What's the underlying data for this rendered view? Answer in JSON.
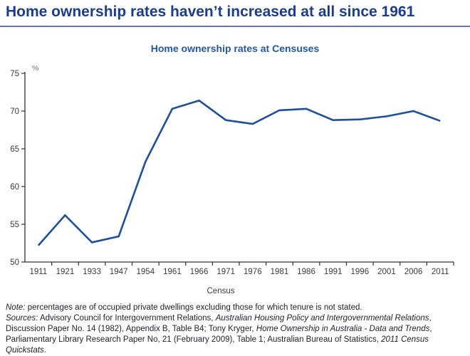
{
  "header": {
    "title": "Home ownership rates haven’t increased at all since 1961"
  },
  "chart_data": {
    "type": "line",
    "title": "Home ownership rates at Censuses",
    "categories": [
      "1911",
      "1921",
      "1933",
      "1947",
      "1954",
      "1961",
      "1966",
      "1971",
      "1976",
      "1981",
      "1986",
      "1991",
      "1996",
      "2001",
      "2006",
      "2011"
    ],
    "values": [
      52.2,
      56.2,
      52.6,
      53.4,
      63.3,
      70.3,
      71.4,
      68.8,
      68.3,
      70.1,
      70.3,
      68.8,
      68.9,
      69.3,
      70.0,
      68.7
    ],
    "xlabel": "Census",
    "ylabel": "%",
    "ylim": [
      50,
      75
    ],
    "yticks": [
      50,
      55,
      60,
      65,
      70,
      75
    ],
    "grid": false,
    "legend_position": "none",
    "line_color": "#1f4e9c"
  },
  "colors": {
    "page_title": "#1a3d8f",
    "chart_title": "#2458a6",
    "axis": "#2f2f38",
    "tick_text": "#3a3a42",
    "unit_text": "#70707a",
    "footer_text": "#22222e",
    "rule": "#64789f"
  },
  "footer": {
    "note_segments": [
      {
        "text": "Note:",
        "italic": true
      },
      {
        "text": " percentages are of occupied private dwellings excluding those for which tenure is not stated.",
        "italic": false
      }
    ],
    "sources_segments": [
      {
        "text": "Sources:",
        "italic": true
      },
      {
        "text": " Advisory Council for Intergovernment Relations, ",
        "italic": false
      },
      {
        "text": "Australian Housing Policy and Intergovernmental Relations",
        "italic": true
      },
      {
        "text": ", Discussion Paper No. 14 (1982), Appendix B, Table B4; Tony Kryger, ",
        "italic": false
      },
      {
        "text": "Home Ownership in Australia - Data and Trends",
        "italic": true
      },
      {
        "text": ", Parliamentary Library Research Paper No, 21 (February 2009), Table 1; Australian Bureau of Statistics, ",
        "italic": false
      },
      {
        "text": "2011 Census Quickstats",
        "italic": true
      },
      {
        "text": ".",
        "italic": false
      }
    ]
  }
}
